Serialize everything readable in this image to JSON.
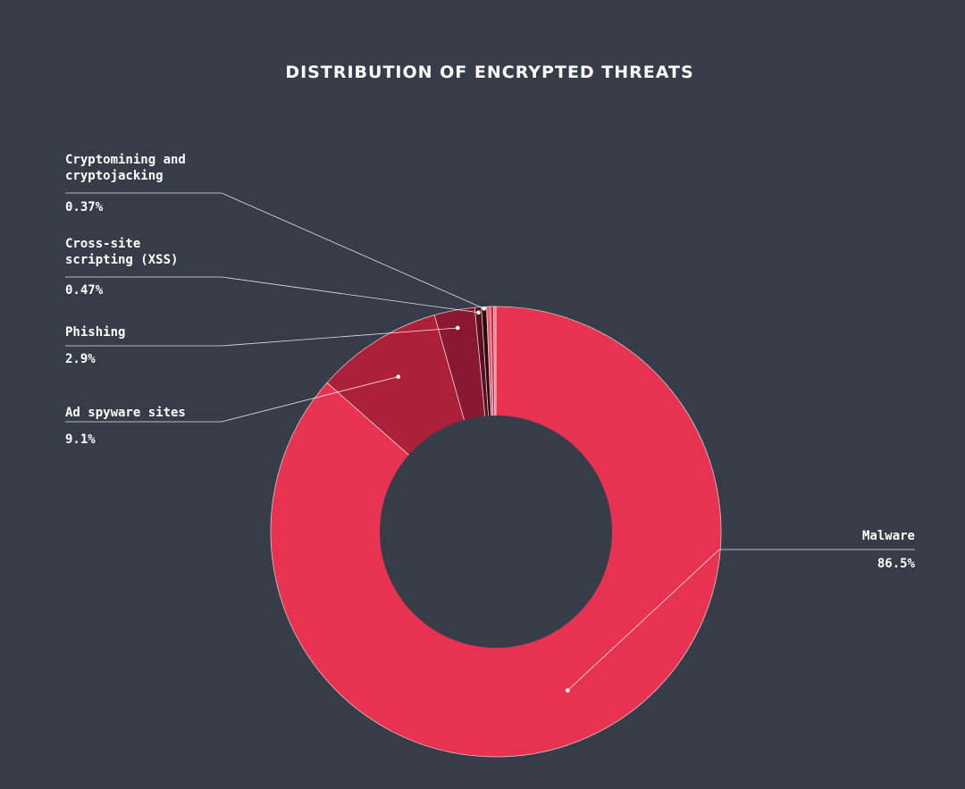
{
  "chart_data": {
    "type": "pie",
    "variant": "donut",
    "title": "DISTRIBUTION OF ENCRYPTED THREATS",
    "slices": [
      {
        "name": "Malware",
        "name_lines": [
          "Malware"
        ],
        "value": 86.5,
        "value_label": "86.5%",
        "color": "#e83251"
      },
      {
        "name": "Ad spyware sites",
        "name_lines": [
          "Ad spyware sites"
        ],
        "value": 9.1,
        "value_label": "9.1%",
        "color": "#ad2039"
      },
      {
        "name": "Phishing",
        "name_lines": [
          "Phishing"
        ],
        "value": 2.9,
        "value_label": "2.9%",
        "color": "#8a1830"
      },
      {
        "name": "Cross-site scripting (XSS)",
        "name_lines": [
          "Cross-site",
          "scripting (XSS)"
        ],
        "value": 0.47,
        "value_label": "0.47%",
        "color": "#5e0f1f"
      },
      {
        "name": "Cryptomining and cryptojacking",
        "name_lines": [
          "Cryptomining and",
          "cryptojacking"
        ],
        "value": 0.37,
        "value_label": "0.37%",
        "color": "#2b0a12"
      },
      {
        "name": "",
        "value": 0.28,
        "color": "#ef5a72"
      },
      {
        "name": "",
        "value": 0.22,
        "color": "#c92845"
      },
      {
        "name": "",
        "value": 0.16,
        "color": "#f07080"
      }
    ],
    "legend": "none",
    "colors": {
      "background": "#363d48",
      "hole": "#363d48",
      "separator": "#ffffff",
      "leader": "#ffffff"
    }
  }
}
